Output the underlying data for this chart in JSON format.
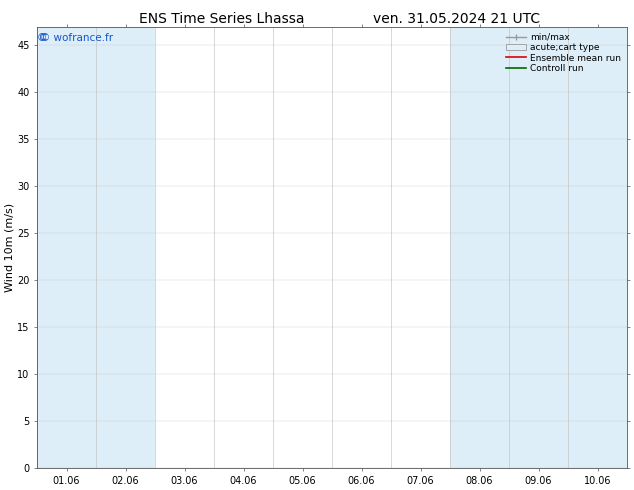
{
  "title_left": "ENS Time Series Lhassa",
  "title_right": "ven. 31.05.2024 21 UTC",
  "ylabel": "Wind 10m (m/s)",
  "watermark": "© wofrance.fr",
  "ylim": [
    0,
    47
  ],
  "yticks": [
    0,
    5,
    10,
    15,
    20,
    25,
    30,
    35,
    40,
    45
  ],
  "xtick_labels": [
    "01.06",
    "02.06",
    "03.06",
    "04.06",
    "05.06",
    "06.06",
    "07.06",
    "08.06",
    "09.06",
    "10.06"
  ],
  "bg_color": "#ffffff",
  "plot_bg_color": "#ffffff",
  "shaded_columns": [
    0,
    1,
    7,
    8,
    9
  ],
  "shaded_color": "#ddeef8",
  "legend_labels": [
    "min/max",
    "acute;cart type",
    "Ensemble mean run",
    "Controll run"
  ],
  "legend_colors_line": [
    "#999999",
    "#cccccc",
    "#dd0000",
    "#006600"
  ],
  "title_fontsize": 10,
  "tick_fontsize": 7,
  "ylabel_fontsize": 8,
  "n_cols": 10
}
